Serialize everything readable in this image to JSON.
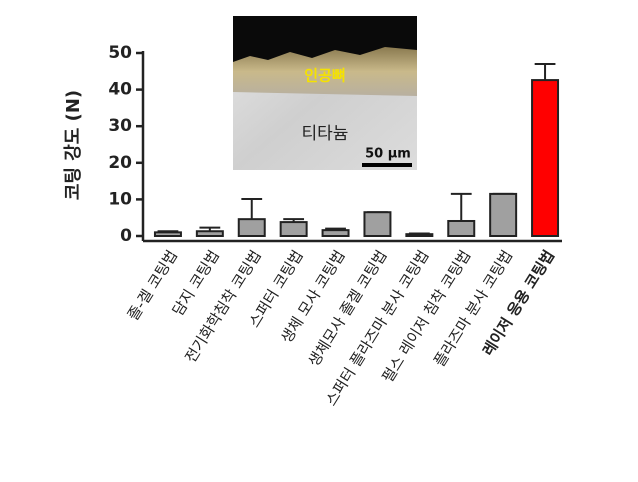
{
  "chart_data": {
    "type": "bar",
    "ylabel": "코팅 강도 (N)",
    "categories": [
      "졸-겔 코팅법",
      "담지 코팅법",
      "전기화학침착 코팅법",
      "스퍼터 코팅법",
      "생체 모사 코팅법",
      "생체모사 졸겔 코팅법",
      "스퍼터 플라즈마 분사 코팅법",
      "펄스 레이저 침착 코팅법",
      "플라즈마 분사 코팅법",
      "레이저 응용 코팅법"
    ],
    "values": [
      1.0,
      1.3,
      4.6,
      3.8,
      1.6,
      6.5,
      0.5,
      4.1,
      11.5,
      42.6
    ],
    "errors": [
      0.3,
      1.0,
      5.5,
      0.8,
      0.4,
      0,
      0.2,
      7.4,
      0,
      4.4
    ],
    "colors": [
      "#a0a0a0",
      "#a0a0a0",
      "#a0a0a0",
      "#a0a0a0",
      "#a0a0a0",
      "#a0a0a0",
      "#a0a0a0",
      "#a0a0a0",
      "#a0a0a0",
      "#ff0000"
    ],
    "highlight": 9,
    "ylim": [
      0,
      50
    ],
    "yticks": [
      0,
      10,
      20,
      30,
      40,
      50
    ],
    "inset": {
      "top_label": "인공뼈",
      "bottom_label": "티타늄",
      "scale_label": "50 μm"
    }
  }
}
